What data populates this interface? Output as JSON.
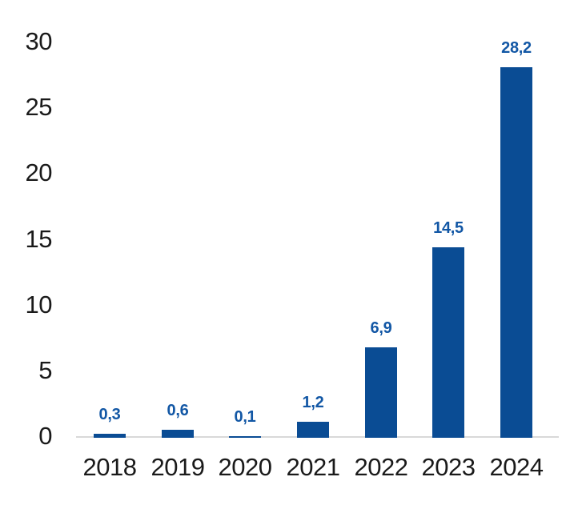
{
  "chart_data": {
    "type": "bar",
    "title": "",
    "xlabel": "",
    "ylabel": "",
    "categories": [
      "2018",
      "2019",
      "2020",
      "2021",
      "2022",
      "2023",
      "2024"
    ],
    "values": [
      0.3,
      0.6,
      0.1,
      1.2,
      6.9,
      14.5,
      28.2
    ],
    "value_labels": [
      "0,3",
      "0,6",
      "0,1",
      "1,2",
      "6,9",
      "14,5",
      "28,2"
    ],
    "decimal_separator": ",",
    "yticks": [
      0,
      5,
      10,
      15,
      20,
      25,
      30
    ],
    "ylim": [
      0,
      30
    ],
    "grid": false,
    "legend_position": "none",
    "colors": {
      "bar": "#0a4c94",
      "value_label": "#1257a5",
      "axis_text": "#1a1a1a",
      "axis_line": "#d9d9d9",
      "background": "#ffffff"
    }
  }
}
